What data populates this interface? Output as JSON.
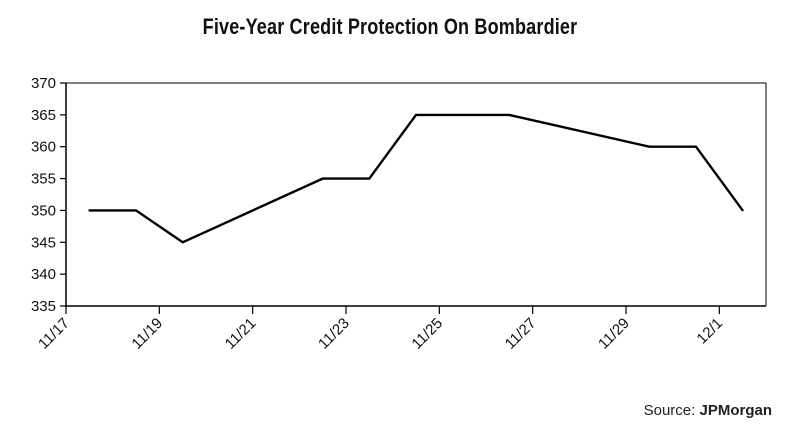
{
  "chart_data": {
    "type": "line",
    "title": "Five-Year Credit Protection On Bombardier",
    "xlabel": "",
    "ylabel": "",
    "x_tick_labels": [
      "11/17",
      "11/19",
      "11/21",
      "11/23",
      "11/25",
      "11/27",
      "11/29",
      "12/1"
    ],
    "x_tick_days": [
      0,
      2,
      4,
      6,
      8,
      10,
      12,
      14
    ],
    "xlim_days": [
      0,
      15
    ],
    "ylim": [
      335,
      370
    ],
    "yticks": [
      335,
      340,
      345,
      350,
      355,
      360,
      365,
      370
    ],
    "grid": false,
    "legend": "none",
    "line_color": "#000000",
    "series": [
      {
        "x": [
          "11/18",
          "11/19",
          "11/20",
          "11/23",
          "11/24",
          "11/25",
          "11/27",
          "11/30",
          "12/1",
          "12/2"
        ],
        "x_days": [
          0.5,
          1.5,
          2.5,
          5.5,
          6.5,
          7.5,
          9.5,
          12.5,
          13.5,
          14.5
        ],
        "values": [
          350,
          350,
          345,
          355,
          355,
          365,
          365,
          360,
          360,
          350
        ]
      }
    ]
  },
  "source": {
    "prefix": "Source: ",
    "name": "JPMorgan"
  }
}
